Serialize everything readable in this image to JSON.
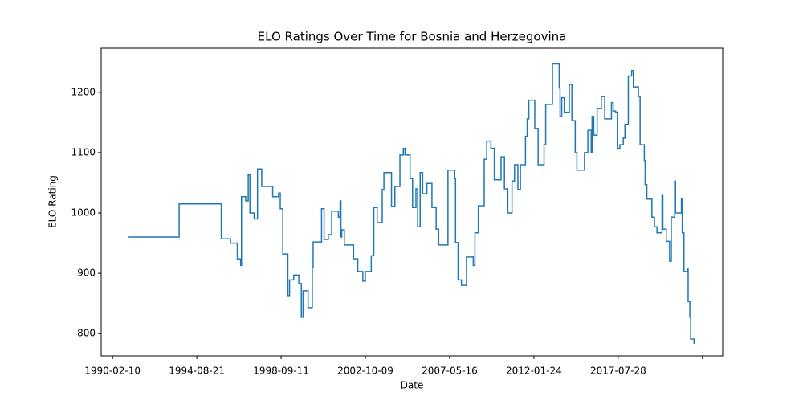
{
  "chart_data": {
    "type": "line",
    "step": "post",
    "title": "ELO Ratings Over Time for Bosnia and Herzegovina",
    "xlabel": "Date",
    "ylabel": "ELO Rating",
    "color": "#1f77b4",
    "x": [
      19,
      79,
      129,
      140,
      148,
      152,
      153,
      158,
      161,
      163,
      168,
      172,
      177,
      190,
      197,
      199,
      202,
      208,
      210,
      215,
      221,
      224,
      226,
      232,
      237,
      238,
      248,
      251,
      256,
      260,
      268,
      270,
      271,
      272,
      275,
      286,
      291,
      297,
      300,
      307,
      310,
      314,
      320,
      322,
      331,
      335,
      341,
      345,
      347,
      353,
      356,
      360,
      362,
      365,
      368,
      373,
      379,
      384,
      387,
      398,
      406,
      407,
      410,
      414,
      420,
      428,
      430,
      434,
      441,
      444,
      449,
      453,
      461,
      465,
      469,
      474,
      477,
      481,
      484,
      490,
      492,
      494,
      501,
      505,
      512,
      514,
      522,
      530,
      531,
      533,
      536,
      542,
      545,
      549,
      551,
      560,
      564,
      568,
      569,
      571,
      575,
      580,
      584,
      592,
      594,
      597,
      599,
      602,
      606,
      608,
      612,
      616,
      618,
      624,
      626,
      631,
      632,
      634,
      640,
      643,
      646,
      652,
      653,
      657,
      661,
      663,
      667,
      668,
      675,
      676,
      678,
      682,
      683,
      685,
      686,
      690,
      691
    ],
    "values": [
      960,
      1015,
      957,
      950,
      924,
      913,
      1027,
      1020,
      1063,
      1000,
      990,
      1073,
      1044,
      1027,
      1033,
      1007,
      932,
      863,
      889,
      897,
      883,
      827,
      871,
      843,
      909,
      952,
      1007,
      956,
      964,
      1003,
      993,
      1020,
      960,
      972,
      947,
      924,
      903,
      887,
      903,
      929,
      1009,
      984,
      1039,
      1067,
      1011,
      1044,
      1096,
      1107,
      1096,
      1057,
      1009,
      1040,
      977,
      1067,
      1032,
      1049,
      1009,
      973,
      947,
      1071,
      1057,
      951,
      889,
      880,
      927,
      913,
      967,
      1012,
      1089,
      1119,
      1107,
      1055,
      1093,
      1040,
      1000,
      1053,
      1080,
      1039,
      1080,
      1127,
      1156,
      1187,
      1140,
      1080,
      1113,
      1180,
      1247,
      1207,
      1160,
      1191,
      1167,
      1213,
      1153,
      1100,
      1071,
      1100,
      1137,
      1100,
      1160,
      1129,
      1173,
      1193,
      1156,
      1183,
      1169,
      1167,
      1107,
      1113,
      1124,
      1147,
      1227,
      1236,
      1209,
      1193,
      1113,
      1087,
      1047,
      1023,
      993,
      977,
      967,
      1029,
      973,
      953,
      920,
      993,
      1053,
      1000,
      1023,
      967,
      903,
      907,
      853,
      827,
      791,
      784,
      784
    ],
    "xlim": [
      -13.5,
      724
    ],
    "xticks": [
      {
        "value": 0,
        "label": "1990-02-10"
      },
      {
        "value": 100,
        "label": "1994-08-21"
      },
      {
        "value": 200,
        "label": "1998-09-11"
      },
      {
        "value": 300,
        "label": "2002-10-09"
      },
      {
        "value": 400,
        "label": "2007-05-16"
      },
      {
        "value": 500,
        "label": "2012-01-24"
      },
      {
        "value": 600,
        "label": "2017-07-28"
      },
      {
        "value": 700,
        "label": null
      }
    ],
    "ylim": [
      763,
      1273
    ],
    "yticks": [
      800,
      900,
      1000,
      1100,
      1200
    ]
  }
}
